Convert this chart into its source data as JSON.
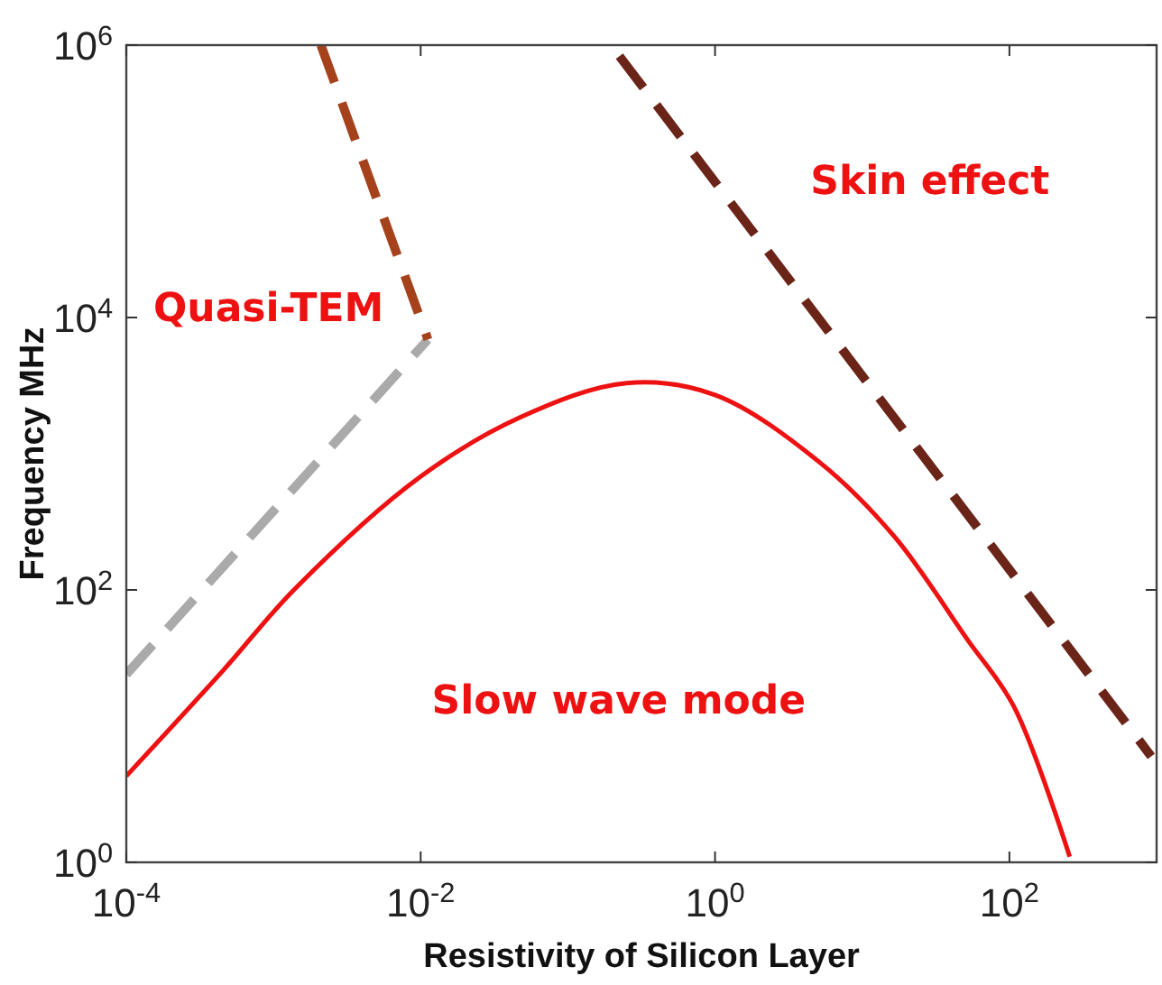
{
  "chart_data": {
    "type": "line",
    "xlabel": "Resistivity of Silicon Layer",
    "ylabel": "Frequency MHz",
    "log": "xy",
    "xlim": [
      0.0001,
      1000
    ],
    "ylim": [
      1,
      1000000
    ],
    "xticks": [
      {
        "value": 0.0001,
        "label": "10$^{-4}$"
      },
      {
        "value": 0.01,
        "label": "10$^{-2}$"
      },
      {
        "value": 1,
        "label": "10$^{0}$"
      },
      {
        "value": 100,
        "label": "10$^{2}$"
      }
    ],
    "yticks": [
      {
        "value": 1,
        "label": "10$^{0}$"
      },
      {
        "value": 100,
        "label": "10$^{2}$"
      },
      {
        "value": 10000,
        "label": "10$^{4}$"
      },
      {
        "value": 1000000,
        "label": "10$^{6}$"
      }
    ],
    "grid": false,
    "series": [
      {
        "color": "#ee1111",
        "line_style": "solid",
        "x": [
          0.0001,
          0.00046,
          0.0014,
          0.01,
          0.048,
          0.25,
          1,
          5.1,
          16.6,
          52,
          107,
          257
        ],
        "values": [
          4.3,
          26,
          102,
          680,
          1860,
          3300,
          2700,
          870,
          245,
          43,
          14,
          1.1
        ]
      },
      {
        "color": "#aaaaaa",
        "line_style": "dashed",
        "x": [
          0.0001,
          0.0112
        ],
        "values": [
          24,
          6900
        ]
      },
      {
        "color": "#a5421c",
        "line_style": "dashed",
        "x": [
          0.0021,
          0.0112
        ],
        "values": [
          1000000,
          6900
        ]
      },
      {
        "color": "#6b2418",
        "line_style": "dashed",
        "x": [
          0.224,
          920
        ],
        "values": [
          830000,
          6
        ]
      }
    ],
    "annotations": [
      "Quasi-TEM",
      "Skin effect",
      "Slow wave mode"
    ]
  }
}
